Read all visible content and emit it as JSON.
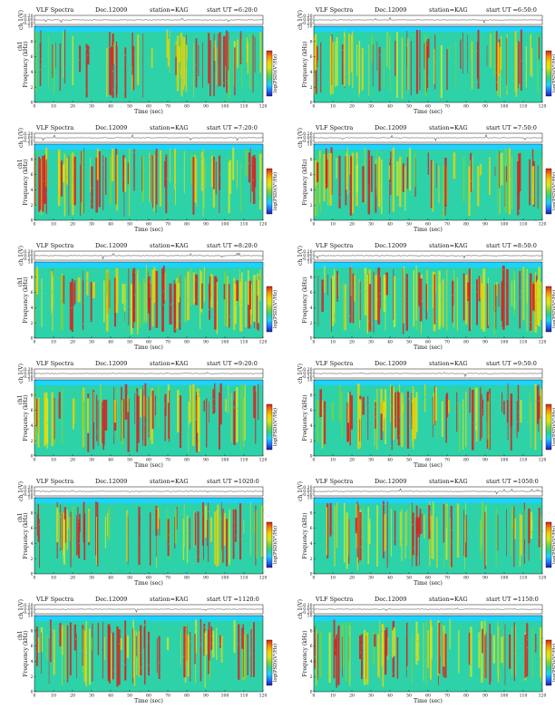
{
  "figure": {
    "kind": "VLF spectrogram grid",
    "rows": 6,
    "cols": 2
  },
  "colors": {
    "spectrum": [
      "#1a1ab4",
      "#1e78ff",
      "#1ed2ff",
      "#2dd28c",
      "#7dd23c",
      "#d2e61e",
      "#f0d200",
      "#f08c00",
      "#dc1e1e"
    ],
    "waveform": "#222222",
    "axis": "#111111"
  },
  "chart_data": [
    {
      "type": "heatmap",
      "title": "VLF Spectra",
      "date": "Dec.12009",
      "station": "station=KAG",
      "start": "start  UT =6:20:0",
      "waveform_label": "ch 1(V)",
      "waveform_ticks": [
        "0.20",
        "0.00",
        "-0.20"
      ],
      "waveform_ylim": [
        -0.2,
        0.2
      ],
      "spectrogram_label": "Frequency (kHz)",
      "channel_label": "ch1",
      "colorbar_label": "log(PSD)(V²/Hz)",
      "xlabel": "Time (sec)",
      "xticks": [
        0,
        10,
        20,
        30,
        40,
        50,
        60,
        70,
        80,
        90,
        100,
        110,
        120
      ],
      "xlim": [
        0,
        120
      ],
      "yticks": [
        0,
        2,
        4,
        6,
        8,
        10
      ],
      "ylim": [
        0,
        10
      ],
      "activity": 0.55
    },
    {
      "type": "heatmap",
      "title": "VLF Spectra",
      "date": "Dec.12009",
      "station": "station=KAG",
      "start": "start  UT =6:50:0",
      "waveform_label": "ch 1(V)",
      "waveform_ticks": [
        "0.20",
        "0.00",
        "-0.20"
      ],
      "waveform_ylim": [
        -0.2,
        0.2
      ],
      "spectrogram_label": "Frequency (kHz)",
      "channel_label": "",
      "colorbar_label": "log(PSD)(V²/Hz)",
      "xlabel": "Time (sec)",
      "xticks": [
        0,
        10,
        20,
        30,
        40,
        50,
        60,
        70,
        80,
        90,
        100,
        110,
        120
      ],
      "xlim": [
        0,
        120
      ],
      "yticks": [
        0,
        2,
        4,
        6,
        8,
        10
      ],
      "ylim": [
        0,
        10
      ],
      "activity": 0.6
    },
    {
      "type": "heatmap",
      "title": "VLF Spectra",
      "date": "Dec.12009",
      "station": "station=KAG",
      "start": "start  UT =7:20:0",
      "waveform_label": "ch 1(V)",
      "waveform_ticks": [
        "0.20",
        "0.00",
        "-0.20"
      ],
      "waveform_ylim": [
        -0.2,
        0.2
      ],
      "spectrogram_label": "Frequency (kHz)",
      "channel_label": "ch1",
      "colorbar_label": "log(PSD)(V²/Hz)",
      "xlabel": "Time (sec)",
      "xticks": [
        0,
        10,
        20,
        30,
        40,
        50,
        60,
        70,
        80,
        90,
        100,
        110,
        120
      ],
      "xlim": [
        0,
        120
      ],
      "yticks": [
        0,
        2,
        4,
        6,
        8,
        10
      ],
      "ylim": [
        0,
        10
      ],
      "activity": 0.7
    },
    {
      "type": "heatmap",
      "title": "VLF Spectra",
      "date": "Dec.12009",
      "station": "station=KAG",
      "start": "start  UT =7:50:0",
      "waveform_label": "ch 1(V)",
      "waveform_ticks": [
        "0.20",
        "0.00",
        "-0.20"
      ],
      "waveform_ylim": [
        -0.2,
        0.2
      ],
      "spectrogram_label": "Frequency (kHz)",
      "channel_label": "",
      "colorbar_label": "log(PSD)(V²/Hz)",
      "xlabel": "Time (sec)",
      "xticks": [
        0,
        10,
        20,
        30,
        40,
        50,
        60,
        70,
        80,
        90,
        100,
        110,
        120
      ],
      "xlim": [
        0,
        120
      ],
      "yticks": [
        0,
        2,
        4,
        6,
        8,
        10
      ],
      "ylim": [
        0,
        10
      ],
      "activity": 0.7
    },
    {
      "type": "heatmap",
      "title": "VLF Spectra",
      "date": "Dec.12009",
      "station": "station=KAG",
      "start": "start  UT =8:20:0",
      "waveform_label": "ch 1(V)",
      "waveform_ticks": [
        "0.20",
        "0.00",
        "-0.20"
      ],
      "waveform_ylim": [
        -0.2,
        0.2
      ],
      "spectrogram_label": "Frequency (kHz)",
      "channel_label": "ch1",
      "colorbar_label": "log(PSD)(V²/Hz)",
      "xlabel": "Time (sec)",
      "xticks": [
        0,
        10,
        20,
        30,
        40,
        50,
        60,
        70,
        80,
        90,
        100,
        110,
        120
      ],
      "xlim": [
        0,
        120
      ],
      "yticks": [
        0,
        2,
        4,
        6,
        8,
        10
      ],
      "ylim": [
        0,
        10
      ],
      "activity": 0.9
    },
    {
      "type": "heatmap",
      "title": "VLF Spectra",
      "date": "Dec.12009",
      "station": "station=KAG",
      "start": "start  UT =8:50:0",
      "waveform_label": "ch 1(V)",
      "waveform_ticks": [
        "0.20",
        "0.00",
        "-0.20"
      ],
      "waveform_ylim": [
        -0.2,
        0.2
      ],
      "spectrogram_label": "Frequency (kHz)",
      "channel_label": "",
      "colorbar_label": "log(PSD)(V²/Hz)",
      "xlabel": "Time (sec)",
      "xticks": [
        0,
        10,
        20,
        30,
        40,
        50,
        60,
        70,
        80,
        90,
        100,
        110,
        120
      ],
      "xlim": [
        0,
        120
      ],
      "yticks": [
        0,
        2,
        4,
        6,
        8,
        10
      ],
      "ylim": [
        0,
        10
      ],
      "activity": 0.85
    },
    {
      "type": "heatmap",
      "title": "VLF Spectra",
      "date": "Dec.12009",
      "station": "station=KAG",
      "start": "start  UT =9:20:0",
      "waveform_label": "ch 1(V)",
      "waveform_ticks": [
        "0.20",
        "0.00",
        "-0.20"
      ],
      "waveform_ylim": [
        -0.2,
        0.2
      ],
      "spectrogram_label": "Frequency (kHz)",
      "channel_label": "ch1",
      "colorbar_label": "log(PSD)(V²/Hz)",
      "xlabel": "Time (sec)",
      "xticks": [
        0,
        10,
        20,
        30,
        40,
        50,
        60,
        70,
        80,
        90,
        100,
        110,
        120
      ],
      "xlim": [
        0,
        120
      ],
      "yticks": [
        0,
        2,
        4,
        6,
        8,
        10
      ],
      "ylim": [
        0,
        10
      ],
      "activity": 0.75
    },
    {
      "type": "heatmap",
      "title": "VLF Spectra",
      "date": "Dec.12009",
      "station": "station=KAG",
      "start": "start  UT =9:50:0",
      "waveform_label": "ch 1(V)",
      "waveform_ticks": [
        "0.20",
        "0.00",
        "-0.20"
      ],
      "waveform_ylim": [
        -0.2,
        0.2
      ],
      "spectrogram_label": "Frequency (kHz)",
      "channel_label": "",
      "colorbar_label": "log(PSD)(V²/Hz)",
      "xlabel": "Time (sec)",
      "xticks": [
        0,
        10,
        20,
        30,
        40,
        50,
        60,
        70,
        80,
        90,
        100,
        110,
        120
      ],
      "xlim": [
        0,
        120
      ],
      "yticks": [
        0,
        2,
        4,
        6,
        8,
        10
      ],
      "ylim": [
        0,
        10
      ],
      "activity": 0.75
    },
    {
      "type": "heatmap",
      "title": "VLF Spectra",
      "date": "Dec.12009",
      "station": "station=KAG",
      "start": "start  UT =1020:0",
      "waveform_label": "ch 1(V)",
      "waveform_ticks": [
        "0.20",
        "0.00",
        "-0.20"
      ],
      "waveform_ylim": [
        -0.2,
        0.2
      ],
      "spectrogram_label": "Frequency (kHz)",
      "channel_label": "ch1",
      "colorbar_label": "log(PSD)(V²/Hz)",
      "xlabel": "Time (sec)",
      "xticks": [
        0,
        10,
        20,
        30,
        40,
        50,
        60,
        70,
        80,
        90,
        100,
        110,
        120
      ],
      "xlim": [
        0,
        120
      ],
      "yticks": [
        0,
        2,
        4,
        6,
        8,
        10
      ],
      "ylim": [
        0,
        10
      ],
      "activity": 0.6
    },
    {
      "type": "heatmap",
      "title": "VLF Spectra",
      "date": "Dec.12009",
      "station": "station=KAG",
      "start": "start  UT =1050:0",
      "waveform_label": "ch 1(V)",
      "waveform_ticks": [
        "0.20",
        "0.00",
        "-0.20"
      ],
      "waveform_ylim": [
        -0.2,
        0.2
      ],
      "spectrogram_label": "Frequency (kHz)",
      "channel_label": "",
      "colorbar_label": "log(PSD)(V²/Hz)",
      "xlabel": "Time (sec)",
      "xticks": [
        0,
        10,
        20,
        30,
        40,
        50,
        60,
        70,
        80,
        90,
        100,
        110,
        120
      ],
      "xlim": [
        0,
        120
      ],
      "yticks": [
        0,
        2,
        4,
        6,
        8,
        10
      ],
      "ylim": [
        0,
        10
      ],
      "activity": 0.6
    },
    {
      "type": "heatmap",
      "title": "VLF Spectra",
      "date": "Dec.12009",
      "station": "station=KAG",
      "start": "start  UT =1120:0",
      "waveform_label": "ch 1(V)",
      "waveform_ticks": [
        "0.20",
        "0.00",
        "-0.20"
      ],
      "waveform_ylim": [
        -0.2,
        0.2
      ],
      "spectrogram_label": "Frequency (kHz)",
      "channel_label": "ch1",
      "colorbar_label": "log(PSD)(V²/Hz)",
      "xlabel": "Time (sec)",
      "xticks": [
        0,
        10,
        20,
        30,
        40,
        50,
        60,
        70,
        80,
        90,
        100,
        110,
        120
      ],
      "xlim": [
        0,
        120
      ],
      "yticks": [
        0,
        2,
        4,
        6,
        8,
        10
      ],
      "ylim": [
        0,
        10
      ],
      "activity": 0.65
    },
    {
      "type": "heatmap",
      "title": "VLF Spectra",
      "date": "Dec.12009",
      "station": "station=KAG",
      "start": "start  UT =1150:0",
      "waveform_label": "ch 1(V)",
      "waveform_ticks": [
        "0.20",
        "0.00",
        "-0.20"
      ],
      "waveform_ylim": [
        -0.2,
        0.2
      ],
      "spectrogram_label": "Frequency (kHz)",
      "channel_label": "",
      "colorbar_label": "log(PSD)(V²/Hz)",
      "xlabel": "Time (sec)",
      "xticks": [
        0,
        10,
        20,
        30,
        40,
        50,
        60,
        70,
        80,
        90,
        100,
        110,
        120
      ],
      "xlim": [
        0,
        120
      ],
      "yticks": [
        0,
        2,
        4,
        6,
        8,
        10
      ],
      "ylim": [
        0,
        10
      ],
      "activity": 0.65
    }
  ]
}
